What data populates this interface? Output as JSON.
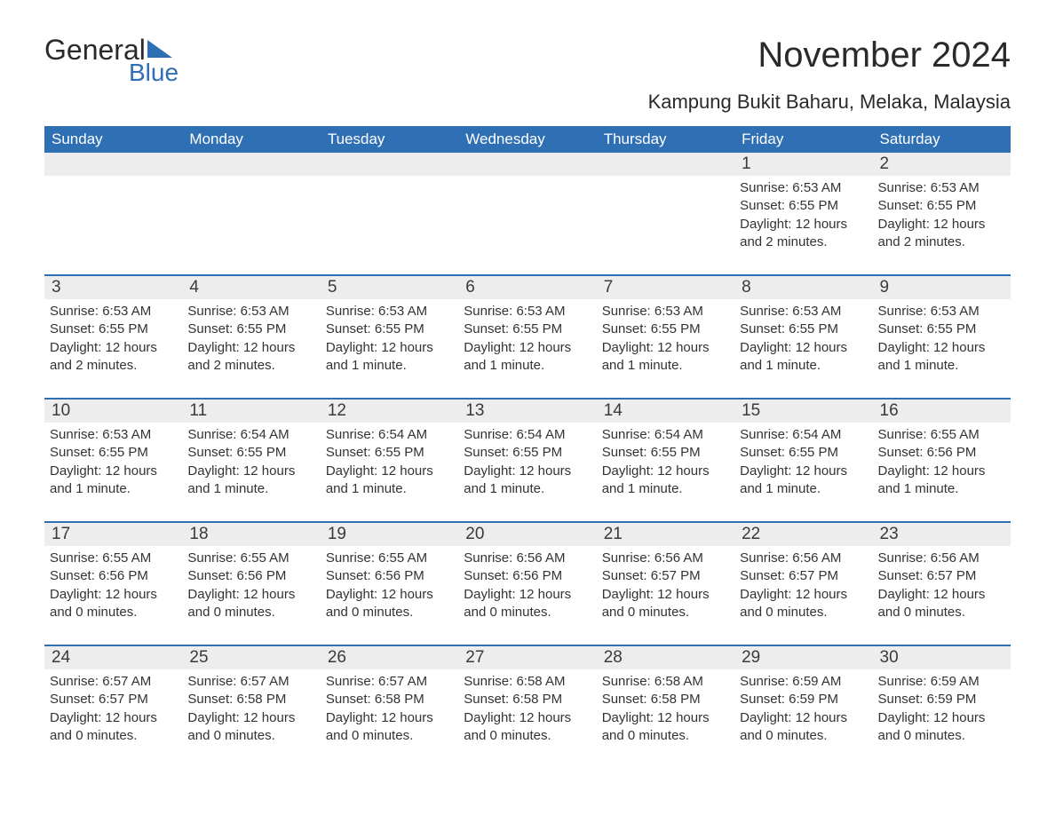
{
  "logo": {
    "text_general": "General",
    "text_blue": "Blue"
  },
  "title": "November 2024",
  "subtitle": "Kampung Bukit Baharu, Melaka, Malaysia",
  "colors": {
    "header_bg": "#2f6fb3",
    "header_text": "#ffffff",
    "daynum_bg": "#ededed",
    "border_top": "#2f6fb3",
    "body_text": "#333333",
    "title_text": "#2a2a2a",
    "logo_blue": "#2f6fb3"
  },
  "typography": {
    "title_fontsize": 40,
    "subtitle_fontsize": 22,
    "weekday_fontsize": 17,
    "daynum_fontsize": 19,
    "body_fontsize": 15
  },
  "weekdays": [
    "Sunday",
    "Monday",
    "Tuesday",
    "Wednesday",
    "Thursday",
    "Friday",
    "Saturday"
  ],
  "weeks": [
    [
      {
        "empty": true
      },
      {
        "empty": true
      },
      {
        "empty": true
      },
      {
        "empty": true
      },
      {
        "empty": true
      },
      {
        "num": "1",
        "sunrise": "6:53 AM",
        "sunset": "6:55 PM",
        "daylight": "12 hours and 2 minutes."
      },
      {
        "num": "2",
        "sunrise": "6:53 AM",
        "sunset": "6:55 PM",
        "daylight": "12 hours and 2 minutes."
      }
    ],
    [
      {
        "num": "3",
        "sunrise": "6:53 AM",
        "sunset": "6:55 PM",
        "daylight": "12 hours and 2 minutes."
      },
      {
        "num": "4",
        "sunrise": "6:53 AM",
        "sunset": "6:55 PM",
        "daylight": "12 hours and 2 minutes."
      },
      {
        "num": "5",
        "sunrise": "6:53 AM",
        "sunset": "6:55 PM",
        "daylight": "12 hours and 1 minute."
      },
      {
        "num": "6",
        "sunrise": "6:53 AM",
        "sunset": "6:55 PM",
        "daylight": "12 hours and 1 minute."
      },
      {
        "num": "7",
        "sunrise": "6:53 AM",
        "sunset": "6:55 PM",
        "daylight": "12 hours and 1 minute."
      },
      {
        "num": "8",
        "sunrise": "6:53 AM",
        "sunset": "6:55 PM",
        "daylight": "12 hours and 1 minute."
      },
      {
        "num": "9",
        "sunrise": "6:53 AM",
        "sunset": "6:55 PM",
        "daylight": "12 hours and 1 minute."
      }
    ],
    [
      {
        "num": "10",
        "sunrise": "6:53 AM",
        "sunset": "6:55 PM",
        "daylight": "12 hours and 1 minute."
      },
      {
        "num": "11",
        "sunrise": "6:54 AM",
        "sunset": "6:55 PM",
        "daylight": "12 hours and 1 minute."
      },
      {
        "num": "12",
        "sunrise": "6:54 AM",
        "sunset": "6:55 PM",
        "daylight": "12 hours and 1 minute."
      },
      {
        "num": "13",
        "sunrise": "6:54 AM",
        "sunset": "6:55 PM",
        "daylight": "12 hours and 1 minute."
      },
      {
        "num": "14",
        "sunrise": "6:54 AM",
        "sunset": "6:55 PM",
        "daylight": "12 hours and 1 minute."
      },
      {
        "num": "15",
        "sunrise": "6:54 AM",
        "sunset": "6:55 PM",
        "daylight": "12 hours and 1 minute."
      },
      {
        "num": "16",
        "sunrise": "6:55 AM",
        "sunset": "6:56 PM",
        "daylight": "12 hours and 1 minute."
      }
    ],
    [
      {
        "num": "17",
        "sunrise": "6:55 AM",
        "sunset": "6:56 PM",
        "daylight": "12 hours and 0 minutes."
      },
      {
        "num": "18",
        "sunrise": "6:55 AM",
        "sunset": "6:56 PM",
        "daylight": "12 hours and 0 minutes."
      },
      {
        "num": "19",
        "sunrise": "6:55 AM",
        "sunset": "6:56 PM",
        "daylight": "12 hours and 0 minutes."
      },
      {
        "num": "20",
        "sunrise": "6:56 AM",
        "sunset": "6:56 PM",
        "daylight": "12 hours and 0 minutes."
      },
      {
        "num": "21",
        "sunrise": "6:56 AM",
        "sunset": "6:57 PM",
        "daylight": "12 hours and 0 minutes."
      },
      {
        "num": "22",
        "sunrise": "6:56 AM",
        "sunset": "6:57 PM",
        "daylight": "12 hours and 0 minutes."
      },
      {
        "num": "23",
        "sunrise": "6:56 AM",
        "sunset": "6:57 PM",
        "daylight": "12 hours and 0 minutes."
      }
    ],
    [
      {
        "num": "24",
        "sunrise": "6:57 AM",
        "sunset": "6:57 PM",
        "daylight": "12 hours and 0 minutes."
      },
      {
        "num": "25",
        "sunrise": "6:57 AM",
        "sunset": "6:58 PM",
        "daylight": "12 hours and 0 minutes."
      },
      {
        "num": "26",
        "sunrise": "6:57 AM",
        "sunset": "6:58 PM",
        "daylight": "12 hours and 0 minutes."
      },
      {
        "num": "27",
        "sunrise": "6:58 AM",
        "sunset": "6:58 PM",
        "daylight": "12 hours and 0 minutes."
      },
      {
        "num": "28",
        "sunrise": "6:58 AM",
        "sunset": "6:58 PM",
        "daylight": "12 hours and 0 minutes."
      },
      {
        "num": "29",
        "sunrise": "6:59 AM",
        "sunset": "6:59 PM",
        "daylight": "12 hours and 0 minutes."
      },
      {
        "num": "30",
        "sunrise": "6:59 AM",
        "sunset": "6:59 PM",
        "daylight": "12 hours and 0 minutes."
      }
    ]
  ],
  "labels": {
    "sunrise_prefix": "Sunrise: ",
    "sunset_prefix": "Sunset: ",
    "daylight_prefix": "Daylight: "
  }
}
